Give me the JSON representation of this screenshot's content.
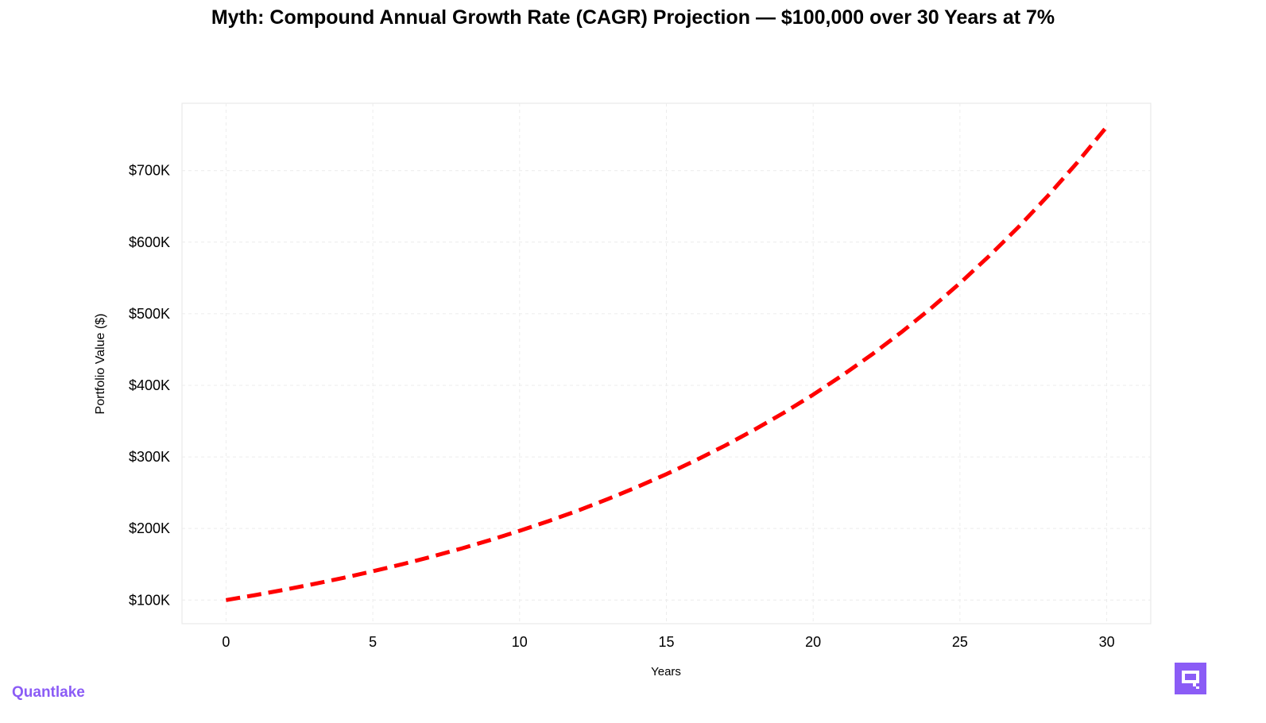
{
  "chart_data": {
    "type": "line",
    "title": "Myth: Compound Annual Growth Rate (CAGR) Projection — $100,000 over 30 Years at 7%",
    "xlabel": "Years",
    "ylabel": "Portfolio Value ($)",
    "xlim": [
      -1.5,
      31.5
    ],
    "ylim": [
      67000,
      794000
    ],
    "x_ticks": [
      0,
      5,
      10,
      15,
      20,
      25,
      30
    ],
    "x_tick_labels": [
      "0",
      "5",
      "10",
      "15",
      "20",
      "25",
      "30"
    ],
    "y_ticks": [
      100000,
      200000,
      300000,
      400000,
      500000,
      600000,
      700000
    ],
    "y_tick_labels": [
      "$100K",
      "$200K",
      "$300K",
      "$400K",
      "$500K",
      "$600K",
      "$700K"
    ],
    "grid": true,
    "series": [
      {
        "color": "#ff0000",
        "style": "dashed",
        "x": [
          0,
          1,
          2,
          3,
          4,
          5,
          6,
          7,
          8,
          9,
          10,
          11,
          12,
          13,
          14,
          15,
          16,
          17,
          18,
          19,
          20,
          21,
          22,
          23,
          24,
          25,
          26,
          27,
          28,
          29,
          30
        ],
        "values": [
          100000,
          107000,
          114490,
          122504,
          131080,
          140255,
          150073,
          160578,
          171819,
          183846,
          196715,
          210485,
          225219,
          240985,
          257853,
          275903,
          295216,
          315882,
          337993,
          361653,
          386968,
          414056,
          443040,
          474053,
          507237,
          542743,
          580735,
          621387,
          664884,
          711426,
          761226
        ]
      }
    ]
  },
  "brand": {
    "name": "Quantlake",
    "color": "#8b5cf6",
    "logo_icon": "chat-bubble-icon"
  }
}
